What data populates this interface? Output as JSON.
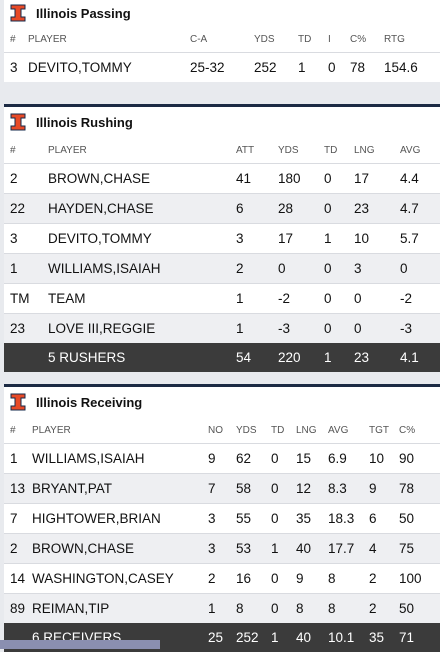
{
  "passing": {
    "title": "Illinois Passing",
    "headers": [
      "#",
      "PLAYER",
      "C-A",
      "YDS",
      "TD",
      "I",
      "C%",
      "RTG"
    ],
    "rows": [
      [
        "3",
        "DEVITO,TOMMY",
        "25-32",
        "252",
        "1",
        "0",
        "78",
        "154.6"
      ]
    ]
  },
  "rushing": {
    "title": "Illinois Rushing",
    "headers": [
      "#",
      "PLAYER",
      "ATT",
      "YDS",
      "TD",
      "LNG",
      "AVG"
    ],
    "rows": [
      [
        "2",
        "BROWN,CHASE",
        "41",
        "180",
        "0",
        "17",
        "4.4"
      ],
      [
        "22",
        "HAYDEN,CHASE",
        "6",
        "28",
        "0",
        "23",
        "4.7"
      ],
      [
        "3",
        "DEVITO,TOMMY",
        "3",
        "17",
        "1",
        "10",
        "5.7"
      ],
      [
        "1",
        "WILLIAMS,ISAIAH",
        "2",
        "0",
        "0",
        "3",
        "0"
      ],
      [
        "TM",
        "TEAM",
        "1",
        "-2",
        "0",
        "0",
        "-2"
      ],
      [
        "23",
        "LOVE III,REGGIE",
        "1",
        "-3",
        "0",
        "0",
        "-3"
      ]
    ],
    "total": [
      "",
      "5 RUSHERS",
      "54",
      "220",
      "1",
      "23",
      "4.1"
    ]
  },
  "receiving": {
    "title": "Illinois Receiving",
    "headers": [
      "#",
      "PLAYER",
      "NO",
      "YDS",
      "TD",
      "LNG",
      "AVG",
      "TGT",
      "C%"
    ],
    "rows": [
      [
        "1",
        "WILLIAMS,ISAIAH",
        "9",
        "62",
        "0",
        "15",
        "6.9",
        "10",
        "90"
      ],
      [
        "13",
        "BRYANT,PAT",
        "7",
        "58",
        "0",
        "12",
        "8.3",
        "9",
        "78"
      ],
      [
        "7",
        "HIGHTOWER,BRIAN",
        "3",
        "55",
        "0",
        "35",
        "18.3",
        "6",
        "50"
      ],
      [
        "2",
        "BROWN,CHASE",
        "3",
        "53",
        "1",
        "40",
        "17.7",
        "4",
        "75"
      ],
      [
        "14",
        "WASHINGTON,CASEY",
        "2",
        "16",
        "0",
        "9",
        "8",
        "2",
        "100"
      ],
      [
        "89",
        "REIMAN,TIP",
        "1",
        "8",
        "0",
        "8",
        "8",
        "2",
        "50"
      ]
    ],
    "total": [
      "",
      "6 RECEIVERS",
      "25",
      "252",
      "1",
      "40",
      "10.1",
      "35",
      "71"
    ]
  },
  "colors": {
    "logo_orange": "#e84a27",
    "logo_navy": "#13294b",
    "total_bg": "#3b3b3b"
  },
  "icons": {
    "team_logo": "illinois-block-i-icon"
  }
}
